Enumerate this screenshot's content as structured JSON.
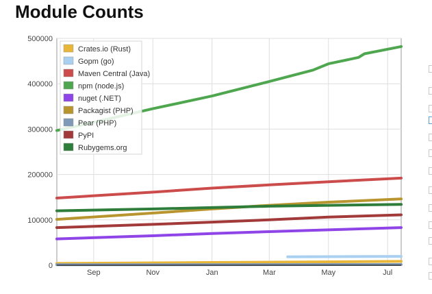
{
  "page": {
    "title": "Module Counts"
  },
  "chart_data": {
    "type": "line",
    "title": "Module Counts",
    "xlabel": "",
    "ylabel": "",
    "x_range": [
      "2014-07-25",
      "2015-07-15"
    ],
    "ylim": [
      0,
      500000
    ],
    "y_ticks": [
      {
        "value": 0,
        "label": "0"
      },
      {
        "value": 100000,
        "label": "100000"
      },
      {
        "value": 200000,
        "label": "200000"
      },
      {
        "value": 300000,
        "label": "300000"
      },
      {
        "value": 400000,
        "label": "400000"
      },
      {
        "value": 500000,
        "label": "500000"
      }
    ],
    "x_ticks": [
      {
        "date": "2014-09-01",
        "label": "Sep"
      },
      {
        "date": "2014-11-01",
        "label": "Nov"
      },
      {
        "date": "2015-01-01",
        "label": "Jan"
      },
      {
        "date": "2015-03-01",
        "label": "Mar"
      },
      {
        "date": "2015-05-01",
        "label": "May"
      },
      {
        "date": "2015-07-01",
        "label": "Jul"
      }
    ],
    "grid": true,
    "legend_position": "top-left",
    "series": [
      {
        "name": "Crates.io (Rust)",
        "color": "#e8b73a",
        "points": [
          [
            "2014-07-25",
            4000
          ],
          [
            "2015-01-01",
            6000
          ],
          [
            "2015-07-15",
            8500
          ]
        ]
      },
      {
        "name": "Gopm (go)",
        "color": "#a9d0f0",
        "points": [
          [
            "2015-03-20",
            18500
          ],
          [
            "2015-07-15",
            19500
          ]
        ]
      },
      {
        "name": "Maven Central (Java)",
        "color": "#cc4b4b",
        "points": [
          [
            "2014-07-25",
            148000
          ],
          [
            "2014-11-01",
            161000
          ],
          [
            "2015-01-01",
            170000
          ],
          [
            "2015-03-01",
            177000
          ],
          [
            "2015-05-01",
            184000
          ],
          [
            "2015-07-15",
            192000
          ]
        ]
      },
      {
        "name": "npm (node.js)",
        "color": "#4ea64e",
        "points": [
          [
            "2014-07-25",
            297000
          ],
          [
            "2014-09-01",
            315000
          ],
          [
            "2014-11-01",
            345000
          ],
          [
            "2015-01-01",
            373000
          ],
          [
            "2015-03-01",
            405000
          ],
          [
            "2015-04-15",
            430000
          ],
          [
            "2015-05-01",
            444000
          ],
          [
            "2015-06-01",
            458000
          ],
          [
            "2015-06-07",
            466000
          ],
          [
            "2015-07-15",
            482000
          ]
        ]
      },
      {
        "name": "nuget (.NET)",
        "color": "#8e44e6",
        "points": [
          [
            "2014-07-25",
            58000
          ],
          [
            "2014-11-01",
            65000
          ],
          [
            "2015-01-01",
            70000
          ],
          [
            "2015-03-01",
            74000
          ],
          [
            "2015-05-01",
            78000
          ],
          [
            "2015-07-15",
            83000
          ]
        ]
      },
      {
        "name": "Packagist (PHP)",
        "color": "#b8952f",
        "points": [
          [
            "2014-07-25",
            101000
          ],
          [
            "2014-11-01",
            115000
          ],
          [
            "2015-01-01",
            124000
          ],
          [
            "2015-03-01",
            132000
          ],
          [
            "2015-05-01",
            139000
          ],
          [
            "2015-07-15",
            146000
          ]
        ]
      },
      {
        "name": "Pear (PHP)",
        "color": "#7f99b8",
        "points": [
          [
            "2014-07-25",
            1000
          ],
          [
            "2015-07-15",
            1500
          ]
        ]
      },
      {
        "name": "PyPI",
        "color": "#a33a3a",
        "points": [
          [
            "2014-07-25",
            83000
          ],
          [
            "2014-11-01",
            90000
          ],
          [
            "2015-01-01",
            95000
          ],
          [
            "2015-03-01",
            100000
          ],
          [
            "2015-05-01",
            106000
          ],
          [
            "2015-07-15",
            111000
          ]
        ]
      },
      {
        "name": "Rubygems.org",
        "color": "#2f7d3a",
        "points": [
          [
            "2014-07-25",
            120000
          ],
          [
            "2014-11-01",
            124000
          ],
          [
            "2015-01-01",
            127000
          ],
          [
            "2015-03-01",
            130000
          ],
          [
            "2015-05-01",
            132000
          ],
          [
            "2015-07-15",
            134000
          ]
        ]
      }
    ]
  }
}
